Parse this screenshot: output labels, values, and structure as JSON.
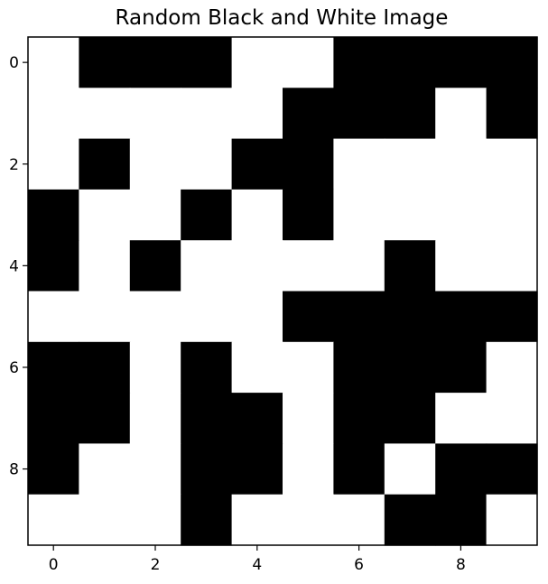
{
  "chart_data": {
    "type": "heatmap",
    "title": "Random Black and White Image",
    "xlabel": "",
    "ylabel": "",
    "colormap": "binary (0 = white, 1 = black)",
    "x_ticks": [
      0,
      2,
      4,
      6,
      8
    ],
    "y_ticks": [
      0,
      2,
      4,
      6,
      8
    ],
    "xlim": [
      -0.5,
      9.5
    ],
    "ylim": [
      9.5,
      -0.5
    ],
    "grid": false,
    "colors": {
      "on": "#000000",
      "off": "#ffffff",
      "frame": "#000000"
    },
    "values": [
      [
        0,
        1,
        1,
        1,
        0,
        0,
        1,
        1,
        1,
        1
      ],
      [
        0,
        0,
        0,
        0,
        0,
        1,
        1,
        1,
        0,
        1
      ],
      [
        0,
        1,
        0,
        0,
        1,
        1,
        0,
        0,
        0,
        0
      ],
      [
        1,
        0,
        0,
        1,
        0,
        1,
        0,
        0,
        0,
        0
      ],
      [
        1,
        0,
        1,
        0,
        0,
        0,
        0,
        1,
        0,
        0
      ],
      [
        0,
        0,
        0,
        0,
        0,
        1,
        1,
        1,
        1,
        1
      ],
      [
        1,
        1,
        0,
        1,
        0,
        0,
        1,
        1,
        1,
        0
      ],
      [
        1,
        1,
        0,
        1,
        1,
        0,
        1,
        1,
        0,
        0
      ],
      [
        1,
        0,
        0,
        1,
        1,
        0,
        1,
        0,
        1,
        1
      ],
      [
        0,
        0,
        0,
        1,
        0,
        0,
        0,
        1,
        1,
        0
      ]
    ]
  }
}
